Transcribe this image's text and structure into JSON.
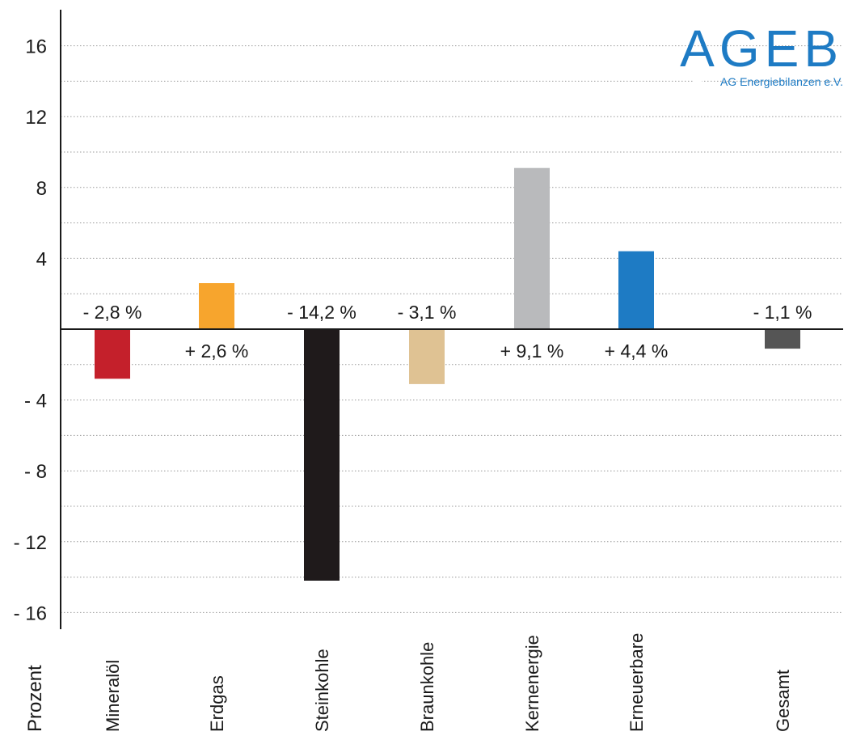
{
  "logo": {
    "name": "AGEB",
    "subtitle": "AG Energiebilanzen e.V.",
    "color": "#1e7bc4"
  },
  "chart_data": {
    "type": "bar",
    "unit_label": "Prozent",
    "categories": [
      "Mineralöl",
      "Erdgas",
      "Steinkohle",
      "Braunkohle",
      "Kernenergie",
      "Erneuerbare",
      "Gesamt"
    ],
    "values": [
      -2.8,
      2.6,
      -14.2,
      -3.1,
      9.1,
      4.4,
      -1.1
    ],
    "data_labels": [
      "- 2,8 %",
      "+ 2,6 %",
      "- 14,2 %",
      "- 3,1 %",
      "+ 9,1 %",
      "+ 4,4 %",
      "- 1,1 %"
    ],
    "colors": [
      "#c4202b",
      "#f7a52d",
      "#1f1a1b",
      "#dfc293",
      "#b9babc",
      "#1e7bc4",
      "#555555"
    ],
    "ylim": [
      -17,
      18
    ],
    "yticks": [
      16,
      12,
      8,
      4,
      -4,
      -8,
      -12,
      -16
    ],
    "ytick_labels": [
      "16",
      "12",
      "8",
      "4",
      "- 4",
      "- 8",
      "- 12",
      "- 16"
    ],
    "minor_grid_step": 2,
    "grid": true
  }
}
